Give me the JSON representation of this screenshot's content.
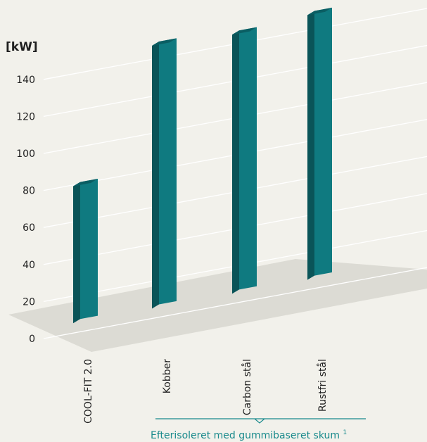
{
  "chart_data": {
    "type": "bar",
    "unit_label": "[kW]",
    "categories": [
      "COOL-FIT 2.0",
      "Kobber",
      "Carbon stål",
      "Rustfri stål"
    ],
    "values": [
      74,
      142,
      140,
      143
    ],
    "y_ticks": [
      "0",
      "20",
      "40",
      "60",
      "80",
      "100",
      "120",
      "140"
    ],
    "ylim": [
      0,
      140
    ],
    "grid": true,
    "bracket_note": "Efterisoleret med gummibaseret skum",
    "bracket_note_sup": "1",
    "colors": {
      "bar_front": "#0f7a80",
      "bar_side": "#0a5458",
      "bar_top": "#0a5e63",
      "floor": "#dcdbd4",
      "grid": "#ffffff",
      "accent": "#1a8a8c"
    }
  }
}
